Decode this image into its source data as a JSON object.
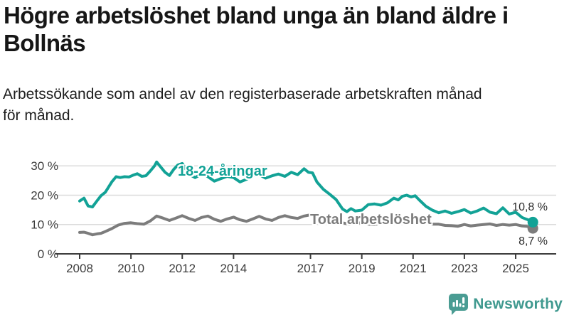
{
  "title": {
    "line1": "Högre arbetslöshet bland unga än bland äldre i",
    "line2": "Bollnäs"
  },
  "subtitle": {
    "line1": "Arbetssökande som andel av den registerbaserade arbetskraften månad",
    "line2": "för månad."
  },
  "logo": {
    "text": "Newsworthy",
    "color": "#3f998f",
    "icon_color": "#4a9c93"
  },
  "colors": {
    "youth_line": "#12a296",
    "total_line": "#7c7c7c",
    "axis": "#3c3c3c",
    "grid": "#dbdbdb",
    "value_label": "#2b2b2b"
  },
  "chart_data": {
    "type": "line",
    "unit": "%",
    "xlabel": "",
    "ylabel": "",
    "xlim": [
      2007.1,
      2026.6
    ],
    "ylim": [
      0,
      33
    ],
    "grid": "horizontal",
    "legend_position": "inline-labels",
    "x_ticks": [
      {
        "value": 2008,
        "label": "2008"
      },
      {
        "value": 2010,
        "label": "2010"
      },
      {
        "value": 2012,
        "label": "2012"
      },
      {
        "value": 2014,
        "label": "2014"
      },
      {
        "value": 2017,
        "label": "2017"
      },
      {
        "value": 2019,
        "label": "2019"
      },
      {
        "value": 2021,
        "label": "2021"
      },
      {
        "value": 2023,
        "label": "2023"
      },
      {
        "value": 2025,
        "label": "2025"
      }
    ],
    "y_ticks": [
      {
        "value": 0,
        "label": "0 %"
      },
      {
        "value": 10,
        "label": "10 %"
      },
      {
        "value": 20,
        "label": "20 %"
      },
      {
        "value": 30,
        "label": "30 %"
      }
    ],
    "series": [
      {
        "name": "18-24-åringar",
        "color": "#12a296",
        "end_label": "10,8 %",
        "end_value": 10.8,
        "points": [
          [
            2008.0,
            18.0
          ],
          [
            2008.17,
            19.0
          ],
          [
            2008.33,
            16.3
          ],
          [
            2008.5,
            16.0
          ],
          [
            2008.67,
            18.0
          ],
          [
            2008.83,
            19.8
          ],
          [
            2009.0,
            21.0
          ],
          [
            2009.25,
            24.5
          ],
          [
            2009.42,
            26.3
          ],
          [
            2009.58,
            26.0
          ],
          [
            2009.75,
            26.3
          ],
          [
            2009.92,
            26.2
          ],
          [
            2010.08,
            26.8
          ],
          [
            2010.25,
            27.3
          ],
          [
            2010.42,
            26.4
          ],
          [
            2010.58,
            26.6
          ],
          [
            2010.75,
            28.2
          ],
          [
            2010.92,
            30.0
          ],
          [
            2011.0,
            31.3
          ],
          [
            2011.17,
            29.5
          ],
          [
            2011.33,
            27.8
          ],
          [
            2011.5,
            26.7
          ],
          [
            2011.67,
            28.8
          ],
          [
            2011.83,
            30.3
          ],
          [
            2012.0,
            30.8
          ],
          [
            2012.17,
            28.5
          ],
          [
            2012.33,
            26.8
          ],
          [
            2012.5,
            26.0
          ],
          [
            2012.67,
            26.8
          ],
          [
            2012.83,
            27.3
          ],
          [
            2013.0,
            26.3
          ],
          [
            2013.25,
            24.8
          ],
          [
            2013.5,
            25.6
          ],
          [
            2013.75,
            26.4
          ],
          [
            2014.0,
            26.0
          ],
          [
            2014.25,
            24.5
          ],
          [
            2014.5,
            25.4
          ],
          [
            2014.75,
            26.6
          ],
          [
            2015.0,
            27.0
          ],
          [
            2015.25,
            25.8
          ],
          [
            2015.5,
            26.6
          ],
          [
            2015.75,
            27.2
          ],
          [
            2016.0,
            26.4
          ],
          [
            2016.25,
            27.8
          ],
          [
            2016.5,
            27.0
          ],
          [
            2016.75,
            29.0
          ],
          [
            2016.92,
            27.8
          ],
          [
            2017.08,
            27.6
          ],
          [
            2017.25,
            24.5
          ],
          [
            2017.5,
            22.0
          ],
          [
            2017.75,
            20.3
          ],
          [
            2018.0,
            18.5
          ],
          [
            2018.25,
            15.3
          ],
          [
            2018.42,
            14.4
          ],
          [
            2018.58,
            15.4
          ],
          [
            2018.75,
            14.6
          ],
          [
            2019.0,
            14.9
          ],
          [
            2019.25,
            16.8
          ],
          [
            2019.5,
            17.0
          ],
          [
            2019.75,
            16.6
          ],
          [
            2020.0,
            17.4
          ],
          [
            2020.25,
            19.0
          ],
          [
            2020.42,
            18.4
          ],
          [
            2020.58,
            19.6
          ],
          [
            2020.75,
            20.0
          ],
          [
            2020.92,
            19.4
          ],
          [
            2021.08,
            19.8
          ],
          [
            2021.25,
            18.3
          ],
          [
            2021.5,
            16.2
          ],
          [
            2021.75,
            14.9
          ],
          [
            2022.0,
            14.0
          ],
          [
            2022.25,
            14.6
          ],
          [
            2022.5,
            13.8
          ],
          [
            2022.75,
            14.4
          ],
          [
            2023.0,
            15.1
          ],
          [
            2023.25,
            13.9
          ],
          [
            2023.5,
            14.6
          ],
          [
            2023.75,
            15.6
          ],
          [
            2024.0,
            14.2
          ],
          [
            2024.25,
            13.7
          ],
          [
            2024.5,
            15.7
          ],
          [
            2024.75,
            13.6
          ],
          [
            2025.0,
            14.2
          ],
          [
            2025.25,
            12.4
          ],
          [
            2025.42,
            11.8
          ],
          [
            2025.58,
            11.3
          ],
          [
            2025.67,
            10.8
          ]
        ]
      },
      {
        "name": "Total arbetslöshet",
        "color": "#7c7c7c",
        "end_label": "8,7 %",
        "end_value": 8.7,
        "points": [
          [
            2008.0,
            7.3
          ],
          [
            2008.17,
            7.4
          ],
          [
            2008.33,
            7.0
          ],
          [
            2008.5,
            6.5
          ],
          [
            2008.67,
            6.8
          ],
          [
            2008.83,
            7.0
          ],
          [
            2009.0,
            7.6
          ],
          [
            2009.25,
            8.6
          ],
          [
            2009.5,
            9.8
          ],
          [
            2009.75,
            10.4
          ],
          [
            2010.0,
            10.6
          ],
          [
            2010.25,
            10.3
          ],
          [
            2010.5,
            10.1
          ],
          [
            2010.75,
            11.2
          ],
          [
            2011.0,
            12.9
          ],
          [
            2011.25,
            12.2
          ],
          [
            2011.5,
            11.4
          ],
          [
            2011.75,
            12.2
          ],
          [
            2012.0,
            13.0
          ],
          [
            2012.25,
            12.1
          ],
          [
            2012.5,
            11.4
          ],
          [
            2012.75,
            12.4
          ],
          [
            2013.0,
            12.9
          ],
          [
            2013.25,
            11.8
          ],
          [
            2013.5,
            11.1
          ],
          [
            2013.75,
            11.9
          ],
          [
            2014.0,
            12.5
          ],
          [
            2014.25,
            11.6
          ],
          [
            2014.5,
            11.1
          ],
          [
            2014.75,
            11.9
          ],
          [
            2015.0,
            12.8
          ],
          [
            2015.25,
            11.9
          ],
          [
            2015.5,
            11.4
          ],
          [
            2015.75,
            12.4
          ],
          [
            2016.0,
            13.0
          ],
          [
            2016.25,
            12.4
          ],
          [
            2016.5,
            12.1
          ],
          [
            2016.75,
            12.9
          ],
          [
            2017.0,
            13.3
          ],
          [
            2017.25,
            12.5
          ],
          [
            2017.5,
            11.9
          ],
          [
            2017.75,
            11.6
          ],
          [
            2018.0,
            11.3
          ],
          [
            2018.25,
            10.6
          ],
          [
            2018.5,
            10.1
          ],
          [
            2018.75,
            10.4
          ],
          [
            2019.0,
            10.6
          ],
          [
            2019.25,
            10.1
          ],
          [
            2019.5,
            10.0
          ],
          [
            2019.75,
            10.4
          ],
          [
            2020.0,
            10.9
          ],
          [
            2020.25,
            11.8
          ],
          [
            2020.5,
            12.0
          ],
          [
            2020.75,
            11.8
          ],
          [
            2021.0,
            11.9
          ],
          [
            2021.25,
            11.1
          ],
          [
            2021.5,
            10.6
          ],
          [
            2021.75,
            10.1
          ],
          [
            2022.0,
            10.1
          ],
          [
            2022.25,
            9.7
          ],
          [
            2022.5,
            9.6
          ],
          [
            2022.75,
            9.4
          ],
          [
            2023.0,
            10.0
          ],
          [
            2023.25,
            9.5
          ],
          [
            2023.5,
            9.8
          ],
          [
            2023.75,
            10.0
          ],
          [
            2024.0,
            10.2
          ],
          [
            2024.25,
            9.7
          ],
          [
            2024.5,
            10.0
          ],
          [
            2024.75,
            9.8
          ],
          [
            2025.0,
            10.0
          ],
          [
            2025.25,
            9.5
          ],
          [
            2025.42,
            9.4
          ],
          [
            2025.58,
            9.1
          ],
          [
            2025.67,
            8.7
          ]
        ]
      }
    ]
  }
}
